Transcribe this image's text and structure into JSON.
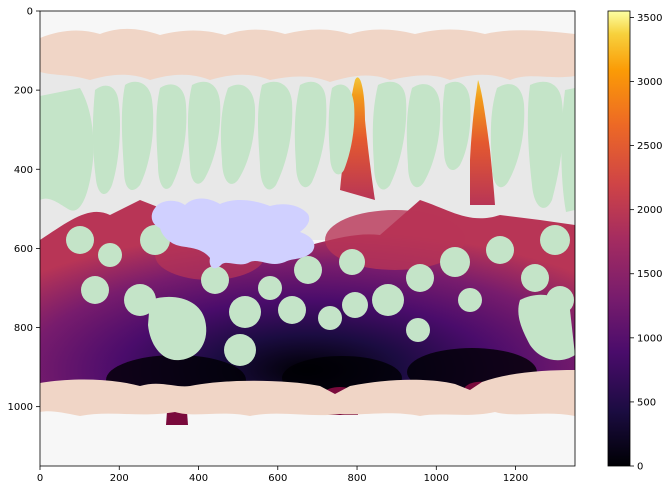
{
  "chart_data": {
    "type": "heatmap",
    "title": "",
    "xlabel": "",
    "ylabel": "",
    "xlim": [
      0,
      1350
    ],
    "ylim": [
      1150,
      0
    ],
    "x_ticks": [
      0,
      200,
      400,
      600,
      800,
      1000,
      1200
    ],
    "y_ticks": [
      0,
      200,
      400,
      600,
      800,
      1000
    ],
    "colorbar": {
      "colormap": "inferno",
      "range": [
        0,
        3550
      ],
      "ticks": [
        0,
        500,
        1000,
        1500,
        2000,
        2500,
        3000,
        3500
      ]
    },
    "regions": [
      {
        "name": "background",
        "color": "#f7f7f7"
      },
      {
        "name": "wall band",
        "color": "#f0d5c6",
        "y_range": [
          40,
          180
        ]
      },
      {
        "name": "wall band",
        "color": "#f0d5c6",
        "y_range": [
          940,
          1030
        ]
      },
      {
        "name": "open area",
        "color": "#e8e8e8",
        "y_range": [
          140,
          620
        ]
      },
      {
        "name": "green blobs",
        "color": "#c4e4c8"
      },
      {
        "name": "lavender blob",
        "color": "#d0d0ff",
        "center": [
          500,
          560
        ]
      }
    ],
    "sources": [
      {
        "x": 345,
        "y": 960
      },
      {
        "x": 760,
        "y": 955
      },
      {
        "x": 1090,
        "y": 940
      }
    ],
    "peaks": [
      {
        "x": 860,
        "y": 260,
        "value": 3300
      },
      {
        "x": 1130,
        "y": 300,
        "value": 2700
      },
      {
        "x": 860,
        "y": 430,
        "value": 2400
      }
    ]
  }
}
